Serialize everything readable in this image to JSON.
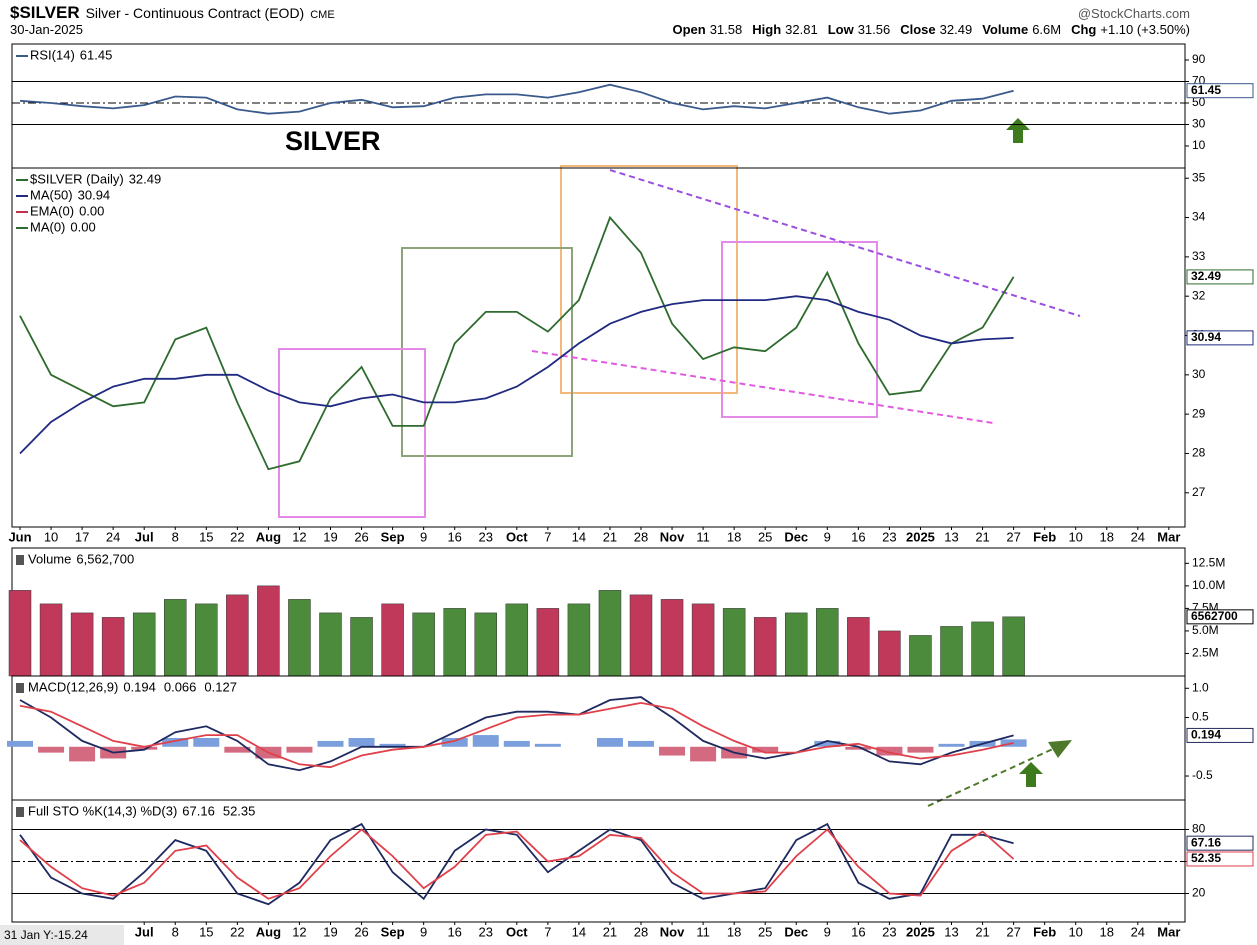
{
  "header": {
    "symbol": "$SILVER",
    "name": "Silver - Continuous Contract (EOD)",
    "exchange": "CME",
    "source": "@StockCharts.com",
    "date": "30-Jan-2025",
    "quote": [
      {
        "label": "Open",
        "value": "31.58"
      },
      {
        "label": "High",
        "value": "32.81"
      },
      {
        "label": "Low",
        "value": "31.56"
      },
      {
        "label": "Close",
        "value": "32.49"
      },
      {
        "label": "Volume",
        "value": "6.6M"
      },
      {
        "label": "Chg",
        "value": "+1.10 (+3.50%)"
      }
    ]
  },
  "chart_data": [
    {
      "type": "line",
      "annotation": "SILVER",
      "annotation_color": "#2346c8",
      "ylim": [
        -10.5,
        104.9
      ],
      "yticks": [
        10,
        30,
        50,
        70,
        90
      ],
      "ref_lines": [
        {
          "value": 70,
          "style": "solid"
        },
        {
          "value": 30,
          "style": "solid"
        },
        {
          "value": 50,
          "style": "dashdot"
        }
      ],
      "series": [
        {
          "name": "RSI(14)",
          "color": "#3a5a8c",
          "last_label": true,
          "values": [
            52,
            50,
            47,
            45,
            48,
            56,
            55,
            44,
            40,
            42,
            50,
            53,
            46,
            47,
            55,
            58,
            58,
            55,
            60,
            67,
            60,
            50,
            44,
            47,
            45,
            50,
            55,
            46,
            40,
            43,
            52,
            54,
            61.45,
            null,
            null,
            null,
            null,
            null
          ]
        }
      ]
    },
    {
      "type": "line",
      "categories": [
        "Jun",
        "10",
        "17",
        "24",
        "Jul",
        "8",
        "15",
        "22",
        "Aug",
        "12",
        "19",
        "26",
        "Sep",
        "9",
        "16",
        "23",
        "Oct",
        "7",
        "14",
        "21",
        "28",
        "Nov",
        "11",
        "18",
        "25",
        "Dec",
        "9",
        "16",
        "23",
        "2025",
        "13",
        "21",
        "27",
        "Feb",
        "10",
        "18",
        "24",
        "Mar"
      ],
      "ylim": [
        26.13,
        35.26
      ],
      "yticks": [
        27,
        28,
        29,
        30,
        31,
        32,
        33,
        34,
        35
      ],
      "series": [
        {
          "name": "$SILVER (Daily)",
          "color": "#2e6b2e",
          "last_label": true,
          "values": [
            31.5,
            30.0,
            29.6,
            29.2,
            29.3,
            30.9,
            31.2,
            29.3,
            27.6,
            27.8,
            29.4,
            30.2,
            28.7,
            28.7,
            30.8,
            31.6,
            31.6,
            31.1,
            31.9,
            34.0,
            33.1,
            31.3,
            30.4,
            30.7,
            30.6,
            31.2,
            32.6,
            30.8,
            29.5,
            29.6,
            30.8,
            31.2,
            32.49,
            null,
            null,
            null,
            null,
            null
          ]
        },
        {
          "name": "MA(50)",
          "color": "#1f2a80",
          "last_label": true,
          "values": [
            28.0,
            28.8,
            29.3,
            29.7,
            29.9,
            29.9,
            30.0,
            30.0,
            29.6,
            29.3,
            29.2,
            29.4,
            29.5,
            29.3,
            29.3,
            29.4,
            29.7,
            30.2,
            30.8,
            31.3,
            31.6,
            31.8,
            31.9,
            31.9,
            31.9,
            32.0,
            31.9,
            31.6,
            31.4,
            31.0,
            30.8,
            30.9,
            30.94,
            null,
            null,
            null,
            null,
            null
          ]
        }
      ],
      "legend_extra": [
        {
          "name": "EMA(0)",
          "label": "0.00",
          "color": "#c0304a"
        },
        {
          "name": "MA(0)",
          "label": "0.00",
          "color": "#2e6b2e"
        }
      ]
    },
    {
      "type": "bar",
      "legend_title": "Volume",
      "legend_value_label": "6,562,700",
      "last_label": true,
      "ylim": [
        0,
        14200000
      ],
      "yticks": [
        {
          "value": 2500000,
          "label": "2.5M"
        },
        {
          "value": 5000000,
          "label": "5.0M"
        },
        {
          "value": 7500000,
          "label": "7.5M"
        },
        {
          "value": 10000000,
          "label": "10.0M"
        },
        {
          "value": 12500000,
          "label": "12.5M"
        }
      ],
      "values": [
        9500000,
        8000000,
        7000000,
        6500000,
        7000000,
        8500000,
        8000000,
        9000000,
        10000000,
        8500000,
        7000000,
        6500000,
        8000000,
        7000000,
        7500000,
        7000000,
        8000000,
        7500000,
        8000000,
        9500000,
        9000000,
        8500000,
        8000000,
        7500000,
        6500000,
        7000000,
        7500000,
        6500000,
        5000000,
        4500000,
        5500000,
        6000000,
        6562700,
        null,
        null,
        null,
        null,
        null
      ],
      "bar_colors": [
        "#c0395a",
        "#c0395a",
        "#c0395a",
        "#c0395a",
        "#4c8a3c",
        "#4c8a3c",
        "#4c8a3c",
        "#c0395a",
        "#c0395a",
        "#4c8a3c",
        "#4c8a3c",
        "#4c8a3c",
        "#c0395a",
        "#4c8a3c",
        "#4c8a3c",
        "#4c8a3c",
        "#4c8a3c",
        "#c0395a",
        "#4c8a3c",
        "#4c8a3c",
        "#c0395a",
        "#c0395a",
        "#c0395a",
        "#4c8a3c",
        "#c0395a",
        "#4c8a3c",
        "#4c8a3c",
        "#c0395a",
        "#c0395a",
        "#4c8a3c",
        "#4c8a3c",
        "#4c8a3c",
        "#4c8a3c",
        null,
        null,
        null,
        null,
        null
      ]
    },
    {
      "type": "line",
      "legend_title": "MACD(12,26,9)",
      "ylim": [
        -0.91,
        1.21
      ],
      "yticks": [
        -0.5,
        0.5,
        {
          "value": 1,
          "label": "1.0"
        }
      ],
      "series": [
        {
          "color": "#1f2a60",
          "last_label": true,
          "values": [
            0.8,
            0.5,
            0.1,
            -0.1,
            -0.05,
            0.25,
            0.35,
            0.1,
            -0.3,
            -0.4,
            -0.25,
            0.0,
            0.0,
            0.0,
            0.25,
            0.5,
            0.6,
            0.6,
            0.55,
            0.8,
            0.85,
            0.5,
            0.1,
            -0.1,
            -0.2,
            -0.1,
            0.1,
            0.0,
            -0.25,
            -0.3,
            -0.1,
            0.05,
            0.194,
            null,
            null,
            null,
            null,
            null
          ]
        },
        {
          "color": "#e0404a",
          "values": [
            0.7,
            0.6,
            0.35,
            0.1,
            0.0,
            0.1,
            0.2,
            0.2,
            -0.1,
            -0.3,
            -0.35,
            -0.15,
            -0.05,
            0.0,
            0.1,
            0.3,
            0.5,
            0.55,
            0.55,
            0.65,
            0.75,
            0.65,
            0.35,
            0.1,
            -0.1,
            -0.1,
            0.0,
            0.05,
            -0.1,
            -0.2,
            -0.15,
            -0.05,
            0.066,
            null,
            null,
            null,
            null,
            null
          ]
        },
        {
          "type": "histogram",
          "color": "#7b9fdc",
          "neg_color": "#d46a80",
          "values": [
            0.1,
            -0.1,
            -0.25,
            -0.2,
            -0.05,
            0.15,
            0.15,
            -0.1,
            -0.2,
            -0.1,
            0.1,
            0.15,
            0.05,
            0.0,
            0.15,
            0.2,
            0.1,
            0.05,
            0.0,
            0.15,
            0.1,
            -0.15,
            -0.25,
            -0.2,
            -0.1,
            0.0,
            0.1,
            -0.05,
            -0.15,
            -0.1,
            0.05,
            0.1,
            0.127,
            null,
            null,
            null,
            null,
            null
          ]
        }
      ]
    },
    {
      "type": "line",
      "legend_title": "Full STO %K(14,3) %D(3)",
      "cursor_label": "31 Jan Y:-15.24",
      "categories": [
        null,
        null,
        null,
        null,
        "Jul",
        "8",
        "15",
        "22",
        "Aug",
        "12",
        "19",
        "26",
        "Sep",
        "9",
        "16",
        "23",
        "Oct",
        "7",
        "14",
        "21",
        "28",
        "Nov",
        "11",
        "18",
        "25",
        "Dec",
        "9",
        "16",
        "23",
        "2025",
        "13",
        "21",
        "27",
        "Feb",
        "10",
        "18",
        "24",
        "Mar"
      ],
      "ylim": [
        -6.7,
        107.6
      ],
      "yticks": [
        20,
        50,
        80
      ],
      "ref_lines": [
        {
          "value": 80,
          "style": "solid"
        },
        {
          "value": 20,
          "style": "solid"
        },
        {
          "value": 50,
          "style": "dashdot"
        }
      ],
      "series": [
        {
          "color": "#1f2a60",
          "last_label": true,
          "values": [
            75,
            35,
            20,
            15,
            40,
            70,
            60,
            20,
            10,
            30,
            70,
            85,
            40,
            15,
            60,
            80,
            75,
            40,
            60,
            80,
            70,
            30,
            15,
            20,
            25,
            70,
            85,
            30,
            15,
            20,
            75,
            75,
            67.16,
            null,
            null,
            null,
            null,
            null
          ]
        },
        {
          "color": "#e0404a",
          "last_label": true,
          "values": [
            70,
            45,
            25,
            18,
            30,
            60,
            65,
            35,
            15,
            25,
            55,
            80,
            55,
            25,
            45,
            75,
            78,
            50,
            55,
            75,
            72,
            40,
            20,
            20,
            22,
            55,
            80,
            45,
            20,
            18,
            60,
            78,
            52.35,
            null,
            null,
            null,
            null,
            null
          ]
        }
      ]
    }
  ]
}
